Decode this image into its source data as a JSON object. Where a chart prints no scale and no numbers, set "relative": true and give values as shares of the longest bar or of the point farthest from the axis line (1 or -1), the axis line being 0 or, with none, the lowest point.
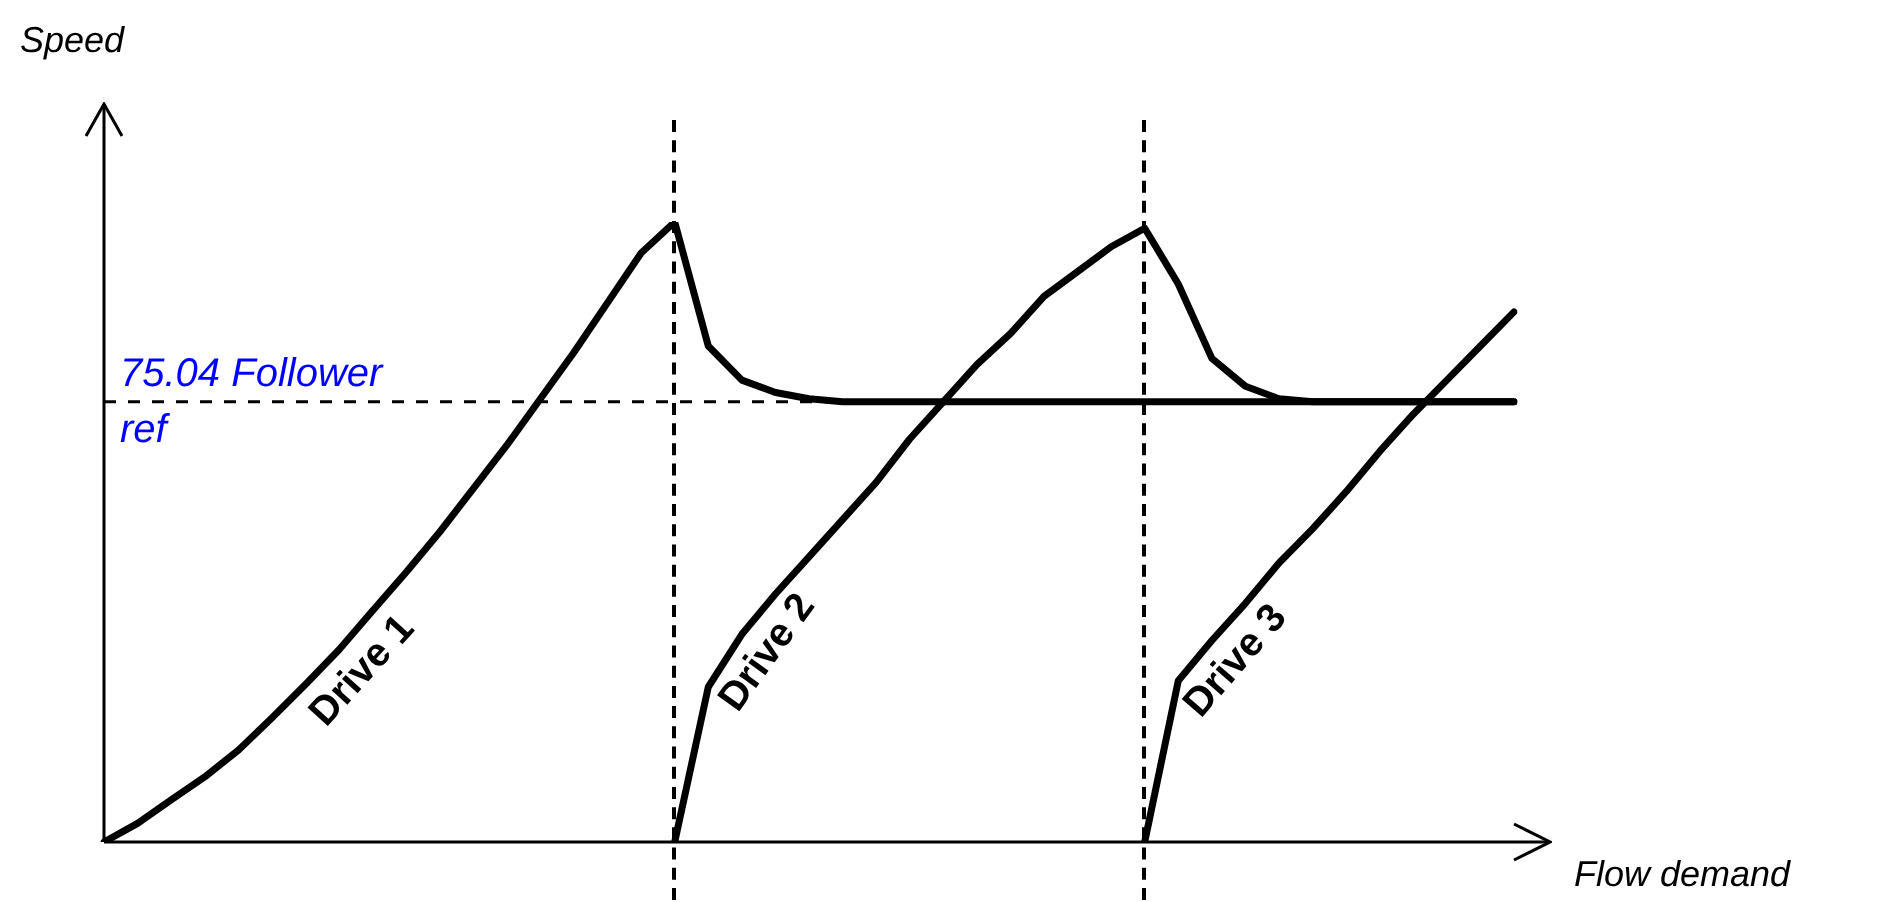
{
  "chart_data": {
    "type": "line",
    "relative": true,
    "xlabel": "Flow demand",
    "ylabel": "Speed",
    "legend": false,
    "grid": false,
    "marker": "none",
    "categories": [
      null,
      null,
      null,
      null,
      null,
      null,
      null,
      null,
      null,
      null,
      null,
      null,
      null,
      null,
      null,
      null,
      null,
      null,
      null,
      null,
      null,
      null,
      null,
      null,
      null,
      null,
      null,
      null,
      null,
      null,
      null,
      null,
      null,
      null,
      null,
      null,
      null,
      null,
      null,
      null,
      null,
      null,
      null
    ],
    "series": [
      {
        "name": "Drive 1",
        "color": "#000000",
        "values": [
          0,
          0.03,
          0.068,
          0.105,
          0.148,
          0.2,
          0.254,
          0.31,
          0.373,
          0.435,
          0.5,
          0.57,
          0.64,
          0.715,
          0.79,
          0.87,
          0.95,
          1.0,
          0.8,
          0.745,
          0.725,
          0.715,
          0.71,
          0.71,
          0.71,
          0.71,
          0.71,
          0.71,
          0.71,
          0.71,
          0.71,
          0.71,
          0.71,
          0.71,
          0.71,
          0.71,
          0.71,
          0.71,
          0.71,
          0.71,
          0.71,
          0.71,
          0.71
        ]
      },
      {
        "name": "Drive 2",
        "color": "#000000",
        "values": [
          null,
          null,
          null,
          null,
          null,
          null,
          null,
          null,
          null,
          null,
          null,
          null,
          null,
          null,
          null,
          null,
          null,
          0,
          0.25,
          0.335,
          0.4,
          0.46,
          0.52,
          0.58,
          0.65,
          0.71,
          0.77,
          0.82,
          0.88,
          0.92,
          0.96,
          0.99,
          0.9,
          0.78,
          0.735,
          0.715,
          0.71,
          0.71,
          0.71,
          0.71,
          0.71,
          0.71,
          0.71
        ]
      },
      {
        "name": "Drive 3",
        "color": "#000000",
        "values": [
          null,
          null,
          null,
          null,
          null,
          null,
          null,
          null,
          null,
          null,
          null,
          null,
          null,
          null,
          null,
          null,
          null,
          null,
          null,
          null,
          null,
          null,
          null,
          null,
          null,
          null,
          null,
          null,
          null,
          null,
          null,
          0,
          0.26,
          0.325,
          0.385,
          0.45,
          0.505,
          0.565,
          0.63,
          0.69,
          0.745,
          0.8,
          0.855
        ]
      }
    ],
    "ref_lines": [
      {
        "axis": "y",
        "value": 0.71,
        "label": "75.04 Follower ref",
        "line_style": "dashed"
      }
    ]
  }
}
